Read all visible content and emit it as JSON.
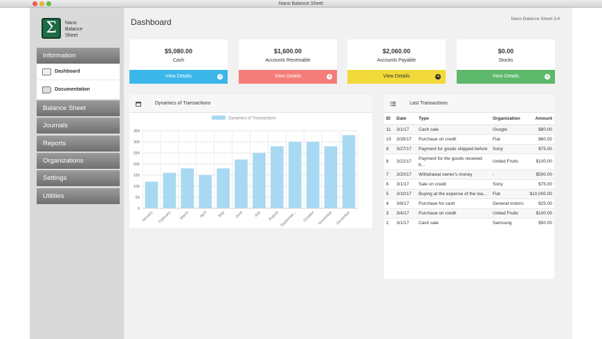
{
  "window": {
    "title": "Nano Balance Sheet"
  },
  "app": {
    "logo_line1": "Nano",
    "logo_line2": "Balance",
    "logo_line3": "Sheet",
    "version": "Nano Balance Sheet 3.4"
  },
  "sidebar": {
    "information": "Information",
    "sub_items": [
      {
        "label": "Dashboard",
        "icon": "monitor-icon"
      },
      {
        "label": "Documentation",
        "icon": "book-icon"
      }
    ],
    "items": [
      "Balance Sheet",
      "Journals",
      "Reports",
      "Organizations",
      "Settings",
      "Utilities"
    ]
  },
  "page": {
    "title": "Dashboard"
  },
  "cards": [
    {
      "value": "$5,080.00",
      "label": "Cash",
      "button": "View Details",
      "color": "#3bb6e8"
    },
    {
      "value": "$1,600.00",
      "label": "Accounts Receivable",
      "button": "View Details",
      "color": "#f47d7a"
    },
    {
      "value": "$2,060.00",
      "label": "Accounts Payable",
      "button": "View Details",
      "color": "#f2d93a"
    },
    {
      "value": "$0.00",
      "label": "Stocks",
      "button": "View Details",
      "color": "#5cb86a"
    }
  ],
  "chart_panel": {
    "title": "Dynamics of Transactions",
    "icon": "calendar-icon"
  },
  "chart_data": {
    "type": "bar",
    "legend": "Dynamics of Transactions",
    "categories": [
      "January",
      "February",
      "March",
      "April",
      "May",
      "June",
      "July",
      "August",
      "Septembe...",
      "October",
      "November",
      "December"
    ],
    "series": [
      {
        "name": "Dynamics of Transactions",
        "values": [
          120,
          160,
          180,
          150,
          180,
          220,
          250,
          280,
          300,
          300,
          280,
          330
        ],
        "color": "#a9d9f2"
      }
    ],
    "ylim": [
      0,
      350
    ],
    "yticks": [
      0,
      50,
      100,
      150,
      200,
      250,
      300,
      350
    ],
    "grid": true,
    "legend_position": "top"
  },
  "transactions": {
    "title": "Last Transactions",
    "icon": "list-icon",
    "columns": [
      "ID",
      "Date",
      "Type",
      "Organization",
      "Amount"
    ],
    "rows": [
      [
        "11",
        "3/1/17",
        "Cash sale",
        "Google",
        "$80.00"
      ],
      [
        "10",
        "3/28/17",
        "Purchase on credit",
        "Fiat",
        "$60.00"
      ],
      [
        "9",
        "3/27/17",
        "Payment for goods shipped before",
        "Sony",
        "$75.00"
      ],
      [
        "8",
        "3/22/17",
        "Payment for the goods received b...",
        "United Fruits",
        "$100.00"
      ],
      [
        "7",
        "3/20/17",
        "Withdrawal owner's money",
        "-",
        "$500.00"
      ],
      [
        "6",
        "3/1/17",
        "Sale on credit",
        "Sony",
        "$75.00"
      ],
      [
        "5",
        "3/10/17",
        "Buying at the expense of the loa...",
        "Fiat",
        "$10,000.00"
      ],
      [
        "4",
        "3/8/17",
        "Purchase for cash",
        "General motors",
        "$25.00"
      ],
      [
        "3",
        "3/4/17",
        "Purchase on credit",
        "United Fruits",
        "$100.00"
      ],
      [
        "2",
        "3/1/17",
        "Cash sale",
        "Samsung",
        "$50.00"
      ]
    ]
  }
}
